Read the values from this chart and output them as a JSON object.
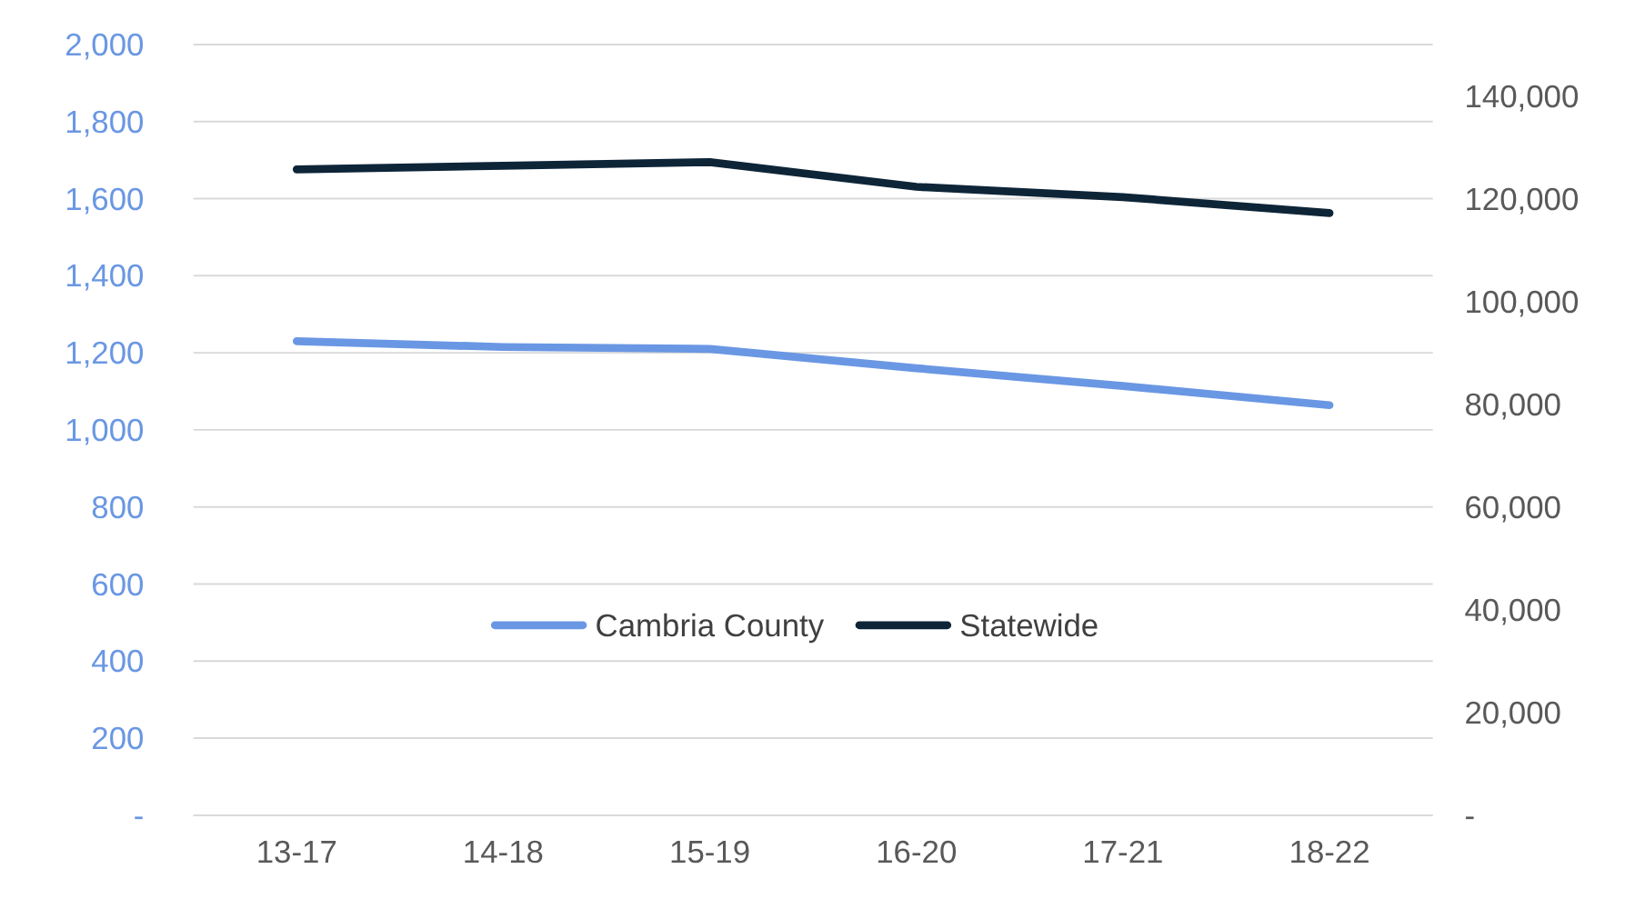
{
  "chart_data": {
    "type": "line",
    "categories": [
      "13-17",
      "14-18",
      "15-19",
      "16-20",
      "17-21",
      "18-22"
    ],
    "series": [
      {
        "name": "Cambria County",
        "color": "#6a97e3",
        "values": [
          1230,
          1215,
          1210,
          1160,
          1114,
          1064
        ]
      },
      {
        "name": "Statewide",
        "color": "#0e2538",
        "axis": "y2",
        "values": [
          125700,
          126400,
          127100,
          122300,
          120300,
          117200
        ]
      }
    ],
    "ylim": [
      0,
      2000
    ],
    "yticks": [
      {
        "value": 0,
        "label": "-"
      },
      {
        "value": 200,
        "label": "200"
      },
      {
        "value": 400,
        "label": "400"
      },
      {
        "value": 600,
        "label": "600"
      },
      {
        "value": 800,
        "label": "800"
      },
      {
        "value": 1000,
        "label": "1,000"
      },
      {
        "value": 1200,
        "label": "1,200"
      },
      {
        "value": 1400,
        "label": "1,400"
      },
      {
        "value": 1600,
        "label": "1,600"
      },
      {
        "value": 1800,
        "label": "1,800"
      },
      {
        "value": 2000,
        "label": "2,000"
      }
    ],
    "y2lim": [
      0,
      150000
    ],
    "y2ticks": [
      {
        "value": 0,
        "label": "-"
      },
      {
        "value": 20000,
        "label": "20,000"
      },
      {
        "value": 40000,
        "label": "40,000"
      },
      {
        "value": 60000,
        "label": "60,000"
      },
      {
        "value": 80000,
        "label": "80,000"
      },
      {
        "value": 100000,
        "label": "100,000"
      },
      {
        "value": 120000,
        "label": "120,000"
      },
      {
        "value": 140000,
        "label": "140,000"
      }
    ],
    "grid": "y",
    "legend": "bottom",
    "marker": "none",
    "line_style": "solid"
  }
}
